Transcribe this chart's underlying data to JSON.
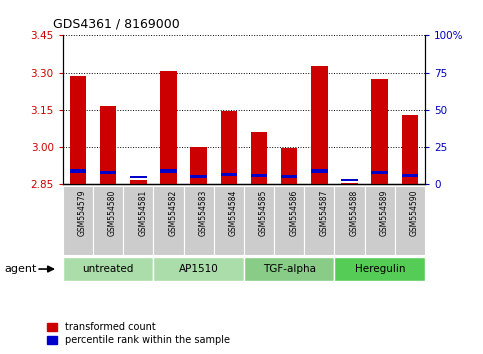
{
  "title": "GDS4361 / 8169000",
  "samples": [
    "GSM554579",
    "GSM554580",
    "GSM554581",
    "GSM554582",
    "GSM554583",
    "GSM554584",
    "GSM554585",
    "GSM554586",
    "GSM554587",
    "GSM554588",
    "GSM554589",
    "GSM554590"
  ],
  "red_values": [
    3.285,
    3.165,
    2.865,
    3.305,
    3.0,
    3.145,
    3.06,
    2.995,
    3.325,
    2.855,
    3.275,
    3.13
  ],
  "blue_values": [
    2.893,
    2.89,
    2.874,
    2.893,
    2.874,
    2.884,
    2.879,
    2.874,
    2.893,
    2.862,
    2.89,
    2.879
  ],
  "blue_heights": [
    0.016,
    0.014,
    0.01,
    0.016,
    0.013,
    0.012,
    0.012,
    0.011,
    0.016,
    0.009,
    0.014,
    0.012
  ],
  "ymin": 2.85,
  "ymax": 3.45,
  "yticks_left": [
    2.85,
    3.0,
    3.15,
    3.3,
    3.45
  ],
  "yticks_right_vals": [
    0,
    25,
    50,
    75,
    100
  ],
  "yticks_right_labels": [
    "0",
    "25",
    "50",
    "75",
    "100%"
  ],
  "bar_bottom": 2.85,
  "bar_color_red": "#cc0000",
  "bar_color_blue": "#0000cc",
  "groups": [
    {
      "label": "untreated",
      "indices": [
        0,
        1,
        2
      ],
      "color": "#aaddaa"
    },
    {
      "label": "AP1510",
      "indices": [
        3,
        4,
        5
      ],
      "color": "#aaddaa"
    },
    {
      "label": "TGF-alpha",
      "indices": [
        6,
        7,
        8
      ],
      "color": "#88cc88"
    },
    {
      "label": "Heregulin",
      "indices": [
        9,
        10,
        11
      ],
      "color": "#55cc55"
    }
  ],
  "legend_red": "transformed count",
  "legend_blue": "percentile rank within the sample",
  "tick_color_left": "#cc0000",
  "tick_color_right": "#0000bb",
  "bar_width": 0.55,
  "xticklabel_bg": "#cccccc"
}
